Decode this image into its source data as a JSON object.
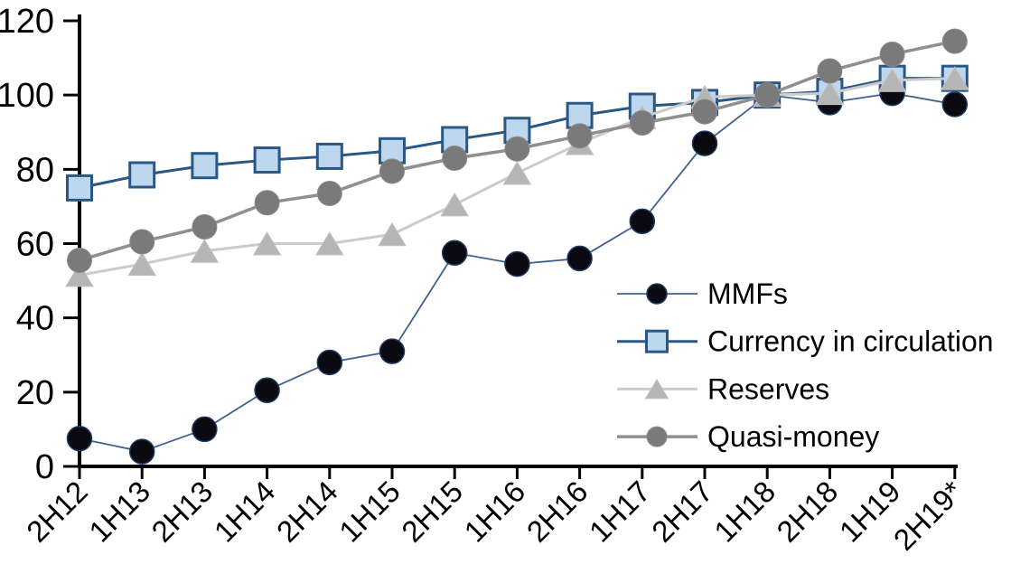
{
  "chart_data": {
    "type": "line",
    "title": "",
    "xlabel": "",
    "ylabel": "",
    "categories": [
      "2H12",
      "1H13",
      "2H13",
      "1H14",
      "2H14",
      "1H15",
      "2H15",
      "1H16",
      "2H16",
      "1H17",
      "2H17",
      "1H18",
      "2H18",
      "1H19",
      "2H19*"
    ],
    "series": [
      {
        "name": "MMFs",
        "marker": "circle",
        "line_color": "#3f618f",
        "line_width": 1.8,
        "marker_fill": "#0a0a10",
        "marker_stroke": "#1f3864",
        "marker_stroke_width": 1.5,
        "values": [
          7.5,
          4,
          10,
          20.5,
          28,
          31,
          57.5,
          54.5,
          56,
          66,
          87,
          100,
          98,
          100.5,
          97.5
        ]
      },
      {
        "name": "Currency in circulation",
        "marker": "square",
        "line_color": "#2a5784",
        "line_width": 3,
        "marker_fill": "#bdd7ee",
        "marker_stroke": "#2a5784",
        "marker_stroke_width": 3,
        "values": [
          75,
          78.5,
          81,
          82.5,
          83.5,
          85,
          88,
          90.5,
          94.5,
          97,
          98,
          100,
          101,
          104.5,
          104.5
        ]
      },
      {
        "name": "Reserves",
        "marker": "triangle",
        "line_color": "#cbcbcb",
        "line_width": 3,
        "marker_fill": "#b5b5b5",
        "marker_stroke": "#c2c2c2",
        "marker_stroke_width": 1,
        "values": [
          51.5,
          54.5,
          58,
          60,
          60,
          62.5,
          70.5,
          79,
          87,
          94,
          99.5,
          100,
          100.5,
          104,
          104.5
        ]
      },
      {
        "name": "Quasi-money",
        "marker": "circle",
        "line_color": "#8f8f8f",
        "line_width": 3.5,
        "marker_fill": "#7a7a7a",
        "marker_stroke": "#8a8a8a",
        "marker_stroke_width": 1,
        "values": [
          55.5,
          60.5,
          64.5,
          71,
          73.5,
          79.5,
          83,
          85.5,
          89,
          92.5,
          95.5,
          100,
          106.5,
          111,
          114.5
        ]
      }
    ],
    "ylim": [
      0,
      120
    ],
    "y_ticks": [
      0,
      20,
      40,
      60,
      80,
      100,
      120
    ],
    "grid": false,
    "legend_position": "inside-right",
    "legend": [
      "MMFs",
      "Currency in circulation",
      "Reserves",
      "Quasi-money"
    ],
    "axis_color": "#000000",
    "background": "#ffffff"
  }
}
